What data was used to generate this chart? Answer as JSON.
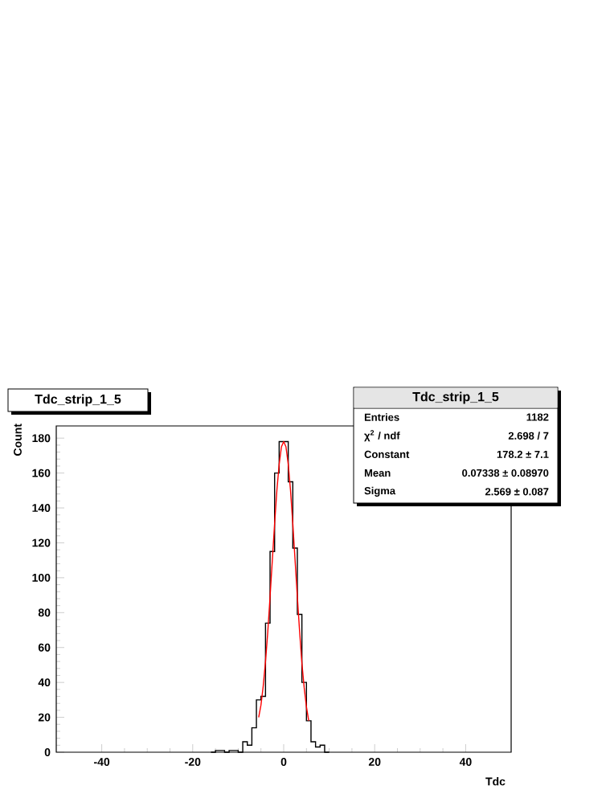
{
  "chart_data": {
    "type": "histogram",
    "title": "Tdc_strip_1_5",
    "xlabel": "Tdc",
    "ylabel": "Count",
    "xlim": [
      -50,
      50
    ],
    "ylim": [
      0,
      187
    ],
    "xticks": [
      -40,
      -20,
      0,
      20,
      40
    ],
    "yticks": [
      0,
      20,
      40,
      60,
      80,
      100,
      120,
      140,
      160,
      180
    ],
    "series": [
      {
        "color": "#000000",
        "bins": [
          -16,
          -15,
          -14,
          -13,
          -12,
          -11,
          -10,
          -9,
          -8,
          -7,
          -6,
          -5,
          -4,
          -3,
          -2,
          -1,
          0,
          1,
          2,
          3,
          4,
          5,
          6,
          7,
          8,
          9,
          10
        ],
        "values": [
          0,
          1,
          1,
          0,
          1,
          1,
          0,
          6,
          4,
          14,
          30,
          32,
          74,
          115,
          160,
          178,
          178,
          155,
          117,
          79,
          40,
          18,
          6,
          3,
          4,
          0
        ]
      },
      {
        "type": "line",
        "color": "#ff0000",
        "x": [
          -5.5,
          -5,
          -4.5,
          -4,
          -3.5,
          -3,
          -2.5,
          -2,
          -1.5,
          -1,
          -0.5,
          0,
          0.5,
          1,
          1.5,
          2,
          2.5,
          3,
          3.5,
          4,
          4.5,
          5,
          5.5
        ],
        "values": [
          20,
          27,
          38,
          52,
          69,
          89,
          110,
          131,
          150,
          165,
          175,
          178,
          175,
          165,
          150,
          131,
          110,
          89,
          69,
          51,
          37,
          26,
          18
        ]
      }
    ],
    "annotations": [
      "Tdc_strip_1_5",
      "Entries",
      "1182",
      "χ$^{2}$ / ndf",
      "2.698 / 7",
      "Constant",
      "178.2 ± 7.1",
      "Mean",
      "0.07338 ± 0.08970",
      "Sigma",
      "2.569 ± 0.087"
    ]
  }
}
